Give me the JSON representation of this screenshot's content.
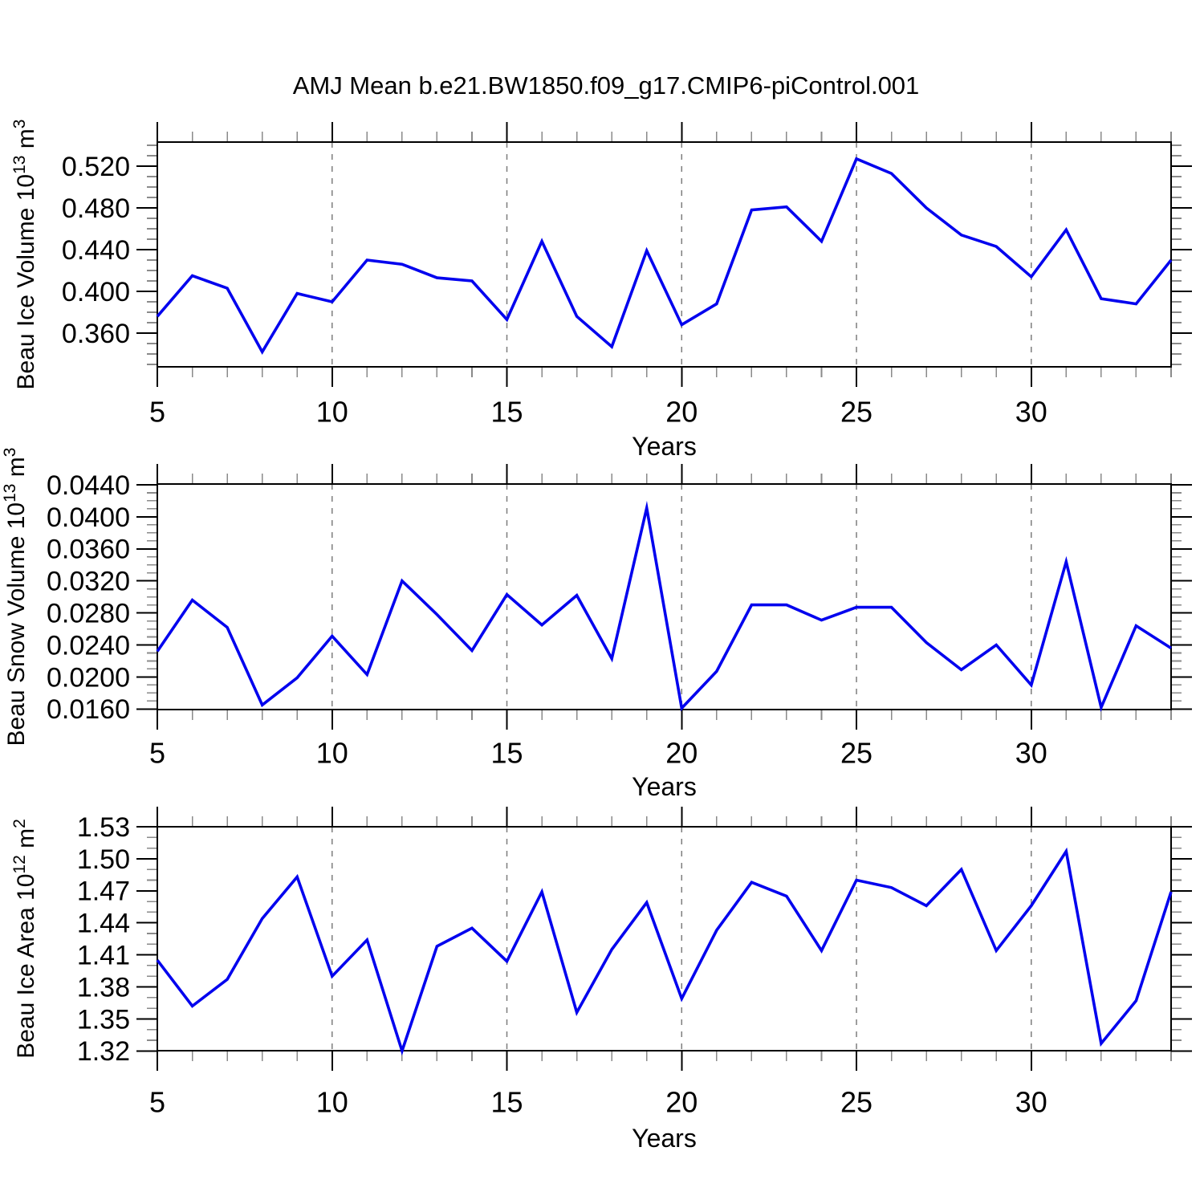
{
  "title": "AMJ Mean b.e21.BW1850.f09_g17.CMIP6-piControl.001",
  "x_axis_label": "Years",
  "colors": {
    "line": "#0202ee",
    "frame": "#000000",
    "grid": "#7d7d7d",
    "major_tick": "#000000",
    "minor_tick": "#8a8a8a",
    "background": "#ffffff",
    "text": "#000000"
  },
  "chart_data": [
    {
      "type": "line",
      "name": "ice-volume",
      "ylabel": "Beau Ice Volume 10^13 m^3",
      "ylabel_parts": [
        {
          "t": "Beau Ice Volume 10"
        },
        {
          "t": "13",
          "sup": true
        },
        {
          "t": " m"
        },
        {
          "t": "3",
          "sup": true
        }
      ],
      "xlabel": "Years",
      "x": [
        5,
        6,
        7,
        8,
        9,
        10,
        11,
        12,
        13,
        14,
        15,
        16,
        17,
        18,
        19,
        20,
        21,
        22,
        23,
        24,
        25,
        26,
        27,
        28,
        29,
        30,
        31,
        32,
        33,
        34
      ],
      "values": [
        0.376,
        0.415,
        0.403,
        0.342,
        0.398,
        0.39,
        0.43,
        0.426,
        0.413,
        0.41,
        0.373,
        0.448,
        0.376,
        0.347,
        0.439,
        0.368,
        0.388,
        0.478,
        0.481,
        0.448,
        0.527,
        0.513,
        0.48,
        0.454,
        0.443,
        0.414,
        0.459,
        0.393,
        0.388,
        0.43
      ],
      "xlim": [
        5,
        34
      ],
      "ylim": [
        0.3277,
        0.5431
      ],
      "yticks": {
        "values": [
          0.36,
          0.4,
          0.44,
          0.48,
          0.52
        ],
        "labels": [
          "0.360",
          "0.400",
          "0.440",
          "0.480",
          "0.520"
        ],
        "minor_step": 0.01
      },
      "xticks": {
        "values": [
          5,
          10,
          15,
          20,
          25,
          30
        ],
        "labels": [
          "5",
          "10",
          "15",
          "20",
          "25",
          "30"
        ],
        "minor_step": 1
      },
      "grid_x": [
        10,
        15,
        20,
        25,
        30
      ],
      "grid_y_on": false,
      "legend": null
    },
    {
      "type": "line",
      "name": "snow-volume",
      "ylabel": "Beau Snow Volume 10^13 m^3",
      "ylabel_parts": [
        {
          "t": "Beau Snow Volume 10"
        },
        {
          "t": "13",
          "sup": true
        },
        {
          "t": " m"
        },
        {
          "t": "3",
          "sup": true
        }
      ],
      "xlabel": "Years",
      "x": [
        5,
        6,
        7,
        8,
        9,
        10,
        11,
        12,
        13,
        14,
        15,
        16,
        17,
        18,
        19,
        20,
        21,
        22,
        23,
        24,
        25,
        26,
        27,
        28,
        29,
        30,
        31,
        32,
        33,
        34
      ],
      "values": [
        0.0232,
        0.0296,
        0.0262,
        0.0165,
        0.0199,
        0.0251,
        0.0203,
        0.032,
        0.0278,
        0.0233,
        0.0303,
        0.0265,
        0.0302,
        0.0223,
        0.0411,
        0.0161,
        0.0207,
        0.029,
        0.029,
        0.0271,
        0.0287,
        0.0287,
        0.0243,
        0.0209,
        0.024,
        0.019,
        0.0344,
        0.0162,
        0.0264,
        0.0236
      ],
      "xlim": [
        5,
        34
      ],
      "ylim": [
        0.01593,
        0.0441
      ],
      "yticks": {
        "values": [
          0.016,
          0.02,
          0.024,
          0.028,
          0.032,
          0.036,
          0.04,
          0.044
        ],
        "labels": [
          "0.0160",
          "0.0200",
          "0.0240",
          "0.0280",
          "0.0320",
          "0.0360",
          "0.0400",
          "0.0440"
        ],
        "minor_step": 0.001
      },
      "xticks": {
        "values": [
          5,
          10,
          15,
          20,
          25,
          30
        ],
        "labels": [
          "5",
          "10",
          "15",
          "20",
          "25",
          "30"
        ],
        "minor_step": 1
      },
      "grid_x": [
        10,
        15,
        20,
        25,
        30
      ],
      "grid_y_on": false,
      "legend": null
    },
    {
      "type": "line",
      "name": "ice-area",
      "ylabel": "Beau Ice Area 10^12 m^2",
      "ylabel_parts": [
        {
          "t": "Beau Ice Area 10"
        },
        {
          "t": "12",
          "sup": true
        },
        {
          "t": " m"
        },
        {
          "t": "2",
          "sup": true
        }
      ],
      "xlabel": "Years",
      "x": [
        5,
        6,
        7,
        8,
        9,
        10,
        11,
        12,
        13,
        14,
        15,
        16,
        17,
        18,
        19,
        20,
        21,
        22,
        23,
        24,
        25,
        26,
        27,
        28,
        29,
        30,
        31,
        32,
        33,
        34
      ],
      "values": [
        1.405,
        1.362,
        1.387,
        1.444,
        1.483,
        1.39,
        1.424,
        1.32,
        1.418,
        1.435,
        1.404,
        1.469,
        1.356,
        1.415,
        1.459,
        1.369,
        1.433,
        1.478,
        1.465,
        1.414,
        1.48,
        1.473,
        1.456,
        1.49,
        1.414,
        1.456,
        1.507,
        1.327,
        1.367,
        1.469
      ],
      "xlim": [
        5,
        34
      ],
      "ylim": [
        1.3202,
        1.53
      ],
      "yticks": {
        "values": [
          1.32,
          1.35,
          1.38,
          1.41,
          1.44,
          1.47,
          1.5,
          1.53
        ],
        "labels": [
          "1.32",
          "1.35",
          "1.38",
          "1.41",
          "1.44",
          "1.47",
          "1.50",
          "1.53"
        ],
        "minor_step": 0.01
      },
      "xticks": {
        "values": [
          5,
          10,
          15,
          20,
          25,
          30
        ],
        "labels": [
          "5",
          "10",
          "15",
          "20",
          "25",
          "30"
        ],
        "minor_step": 1
      },
      "grid_x": [
        10,
        15,
        20,
        25,
        30
      ],
      "grid_y_on": false,
      "legend": null
    }
  ]
}
